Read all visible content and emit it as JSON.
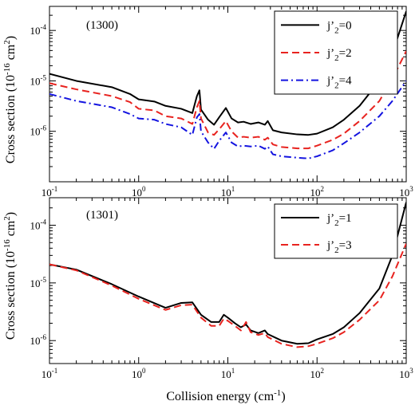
{
  "figure": {
    "xlabel_main": "Collision energy (cm",
    "xlabel_sup": "-1",
    "xlabel_end": ")",
    "ylabel_main": "Cross section (10",
    "ylabel_sup": "-16",
    "ylabel_mid": " cm",
    "ylabel_sup2": "2",
    "ylabel_end": ")"
  },
  "chart_data": [
    {
      "type": "line",
      "annotation": "(1300)",
      "xscale": "log",
      "yscale": "log",
      "xlim": [
        0.1,
        1000
      ],
      "ylim": [
        1e-07,
        0.0003
      ],
      "x_ticks": [
        {
          "base": "10",
          "exp": "-1"
        },
        {
          "base": "10",
          "exp": "0"
        },
        {
          "base": "10",
          "exp": "1"
        },
        {
          "base": "10",
          "exp": "2"
        },
        {
          "base": "10",
          "exp": "3"
        }
      ],
      "y_ticks": [
        {
          "value": 1e-06,
          "base": "10",
          "exp": "-6"
        },
        {
          "value": 1e-05,
          "base": "10",
          "exp": "-5"
        },
        {
          "value": 0.0001,
          "base": "10",
          "exp": "-4"
        }
      ],
      "legend_position": "top-right",
      "series": [
        {
          "name": "j'2=0",
          "legend_main": "j’",
          "legend_sub": "2",
          "legend_end": "=0",
          "color": "#000000",
          "dash": "",
          "points": [
            [
              0.1,
              1.38e-05
            ],
            [
              0.2,
              1e-05
            ],
            [
              0.5,
              7.5e-06
            ],
            [
              0.8,
              5.5e-06
            ],
            [
              1.0,
              4.3e-06
            ],
            [
              1.5,
              3.9e-06
            ],
            [
              2.0,
              3.2e-06
            ],
            [
              3.0,
              2.8e-06
            ],
            [
              4.0,
              2.3e-06
            ],
            [
              4.5,
              5e-06
            ],
            [
              4.8,
              6.5e-06
            ],
            [
              5.0,
              2.7e-06
            ],
            [
              6.0,
              1.7e-06
            ],
            [
              7.0,
              1.35e-06
            ],
            [
              8.0,
              1.9e-06
            ],
            [
              9.5,
              2.9e-06
            ],
            [
              11.0,
              1.8e-06
            ],
            [
              13.0,
              1.5e-06
            ],
            [
              15.0,
              1.55e-06
            ],
            [
              18.0,
              1.4e-06
            ],
            [
              22.0,
              1.5e-06
            ],
            [
              26.0,
              1.35e-06
            ],
            [
              28.0,
              1.6e-06
            ],
            [
              32.0,
              1.05e-06
            ],
            [
              40.0,
              9.5e-07
            ],
            [
              60.0,
              8.7e-07
            ],
            [
              80.0,
              8.5e-07
            ],
            [
              100.0,
              9e-07
            ],
            [
              150.0,
              1.2e-06
            ],
            [
              200.0,
              1.7e-06
            ],
            [
              300.0,
              3.2e-06
            ],
            [
              500.0,
              1e-05
            ],
            [
              700.0,
              3.5e-05
            ],
            [
              1000.0,
              0.00024
            ]
          ]
        },
        {
          "name": "j'2=2",
          "legend_main": "j’",
          "legend_sub": "2",
          "legend_end": "=2",
          "color": "#e8231f",
          "dash": "9,5",
          "points": [
            [
              0.1,
              9e-06
            ],
            [
              0.2,
              6.8e-06
            ],
            [
              0.5,
              5e-06
            ],
            [
              0.8,
              3.8e-06
            ],
            [
              1.0,
              2.8e-06
            ],
            [
              1.5,
              2.6e-06
            ],
            [
              2.0,
              2e-06
            ],
            [
              3.0,
              1.8e-06
            ],
            [
              4.0,
              1.4e-06
            ],
            [
              4.5,
              3e-06
            ],
            [
              4.8,
              4e-06
            ],
            [
              5.0,
              1.8e-06
            ],
            [
              6.0,
              9.5e-07
            ],
            [
              7.0,
              8.5e-07
            ],
            [
              8.0,
              1.1e-06
            ],
            [
              9.5,
              1.6e-06
            ],
            [
              11.0,
              1e-06
            ],
            [
              13.0,
              7.5e-07
            ],
            [
              15.0,
              7.8e-07
            ],
            [
              18.0,
              7.5e-07
            ],
            [
              22.0,
              7.8e-07
            ],
            [
              26.0,
              6.8e-07
            ],
            [
              28.0,
              7.5e-07
            ],
            [
              32.0,
              5.5e-07
            ],
            [
              40.0,
              4.9e-07
            ],
            [
              60.0,
              4.6e-07
            ],
            [
              80.0,
              4.6e-07
            ],
            [
              100.0,
              5.2e-07
            ],
            [
              150.0,
              6.8e-07
            ],
            [
              200.0,
              9e-07
            ],
            [
              300.0,
              1.6e-06
            ],
            [
              500.0,
              4e-06
            ],
            [
              700.0,
              1.1e-05
            ],
            [
              1000.0,
              3.9e-05
            ]
          ]
        },
        {
          "name": "j'2=4",
          "legend_main": "j’",
          "legend_sub": "2",
          "legend_end": "=4",
          "color": "#1414e0",
          "dash": "9,4,2,4",
          "points": [
            [
              0.1,
              5.5e-06
            ],
            [
              0.2,
              4e-06
            ],
            [
              0.5,
              3e-06
            ],
            [
              0.8,
              2.2e-06
            ],
            [
              1.0,
              1.8e-06
            ],
            [
              1.5,
              1.7e-06
            ],
            [
              2.0,
              1.4e-06
            ],
            [
              3.0,
              1.2e-06
            ],
            [
              4.0,
              8.5e-07
            ],
            [
              4.5,
              1.9e-06
            ],
            [
              4.8,
              2.2e-06
            ],
            [
              5.0,
              1e-06
            ],
            [
              6.0,
              6e-07
            ],
            [
              7.0,
              4.5e-07
            ],
            [
              8.0,
              6.5e-07
            ],
            [
              9.5,
              9.5e-07
            ],
            [
              11.0,
              6e-07
            ],
            [
              13.0,
              5e-07
            ],
            [
              15.0,
              5.2e-07
            ],
            [
              18.0,
              5e-07
            ],
            [
              22.0,
              5.2e-07
            ],
            [
              26.0,
              4.5e-07
            ],
            [
              28.0,
              5e-07
            ],
            [
              32.0,
              3.5e-07
            ],
            [
              40.0,
              3.2e-07
            ],
            [
              60.0,
              3e-07
            ],
            [
              80.0,
              2.9e-07
            ],
            [
              100.0,
              3.2e-07
            ],
            [
              150.0,
              4.2e-07
            ],
            [
              200.0,
              5.8e-07
            ],
            [
              300.0,
              9.5e-07
            ],
            [
              500.0,
              2e-06
            ],
            [
              700.0,
              4e-06
            ],
            [
              1000.0,
              1e-05
            ]
          ]
        }
      ]
    },
    {
      "type": "line",
      "annotation": "(1301)",
      "xscale": "log",
      "yscale": "log",
      "xlim": [
        0.1,
        1000
      ],
      "ylim": [
        4e-07,
        0.0003
      ],
      "x_ticks": [
        {
          "base": "10",
          "exp": "-1"
        },
        {
          "base": "10",
          "exp": "0"
        },
        {
          "base": "10",
          "exp": "1"
        },
        {
          "base": "10",
          "exp": "2"
        },
        {
          "base": "10",
          "exp": "3"
        }
      ],
      "y_ticks": [
        {
          "value": 1e-06,
          "base": "10",
          "exp": "-6"
        },
        {
          "value": 1e-05,
          "base": "10",
          "exp": "-5"
        },
        {
          "value": 0.0001,
          "base": "10",
          "exp": "-4"
        }
      ],
      "legend_position": "top-right",
      "series": [
        {
          "name": "j'2=1",
          "legend_main": "j’",
          "legend_sub": "2",
          "legend_end": "=1",
          "color": "#000000",
          "dash": "",
          "points": [
            [
              0.1,
              2.1e-05
            ],
            [
              0.2,
              1.7e-05
            ],
            [
              0.5,
              9.5e-06
            ],
            [
              1.0,
              5.8e-06
            ],
            [
              2.0,
              3.7e-06
            ],
            [
              3.0,
              4.5e-06
            ],
            [
              4.0,
              4.6e-06
            ],
            [
              5.0,
              2.8e-06
            ],
            [
              6.5,
              2.1e-06
            ],
            [
              8.0,
              2.1e-06
            ],
            [
              9.0,
              2.8e-06
            ],
            [
              10.0,
              2.5e-06
            ],
            [
              12.0,
              2e-06
            ],
            [
              14.0,
              1.7e-06
            ],
            [
              16.0,
              1.9e-06
            ],
            [
              18.0,
              1.5e-06
            ],
            [
              22.0,
              1.35e-06
            ],
            [
              26.0,
              1.5e-06
            ],
            [
              28.0,
              1.3e-06
            ],
            [
              40.0,
              1e-06
            ],
            [
              60.0,
              8.8e-07
            ],
            [
              80.0,
              9e-07
            ],
            [
              100.0,
              1.05e-06
            ],
            [
              150.0,
              1.3e-06
            ],
            [
              200.0,
              1.7e-06
            ],
            [
              300.0,
              3e-06
            ],
            [
              500.0,
              8e-06
            ],
            [
              700.0,
              3e-05
            ],
            [
              1000.0,
              0.00025
            ]
          ]
        },
        {
          "name": "j'2=3",
          "legend_main": "j’",
          "legend_sub": "2",
          "legend_end": "=3",
          "color": "#e8231f",
          "dash": "9,5",
          "points": [
            [
              0.1,
              2.1e-05
            ],
            [
              0.2,
              1.65e-05
            ],
            [
              0.5,
              9e-06
            ],
            [
              1.0,
              5.3e-06
            ],
            [
              2.0,
              3.4e-06
            ],
            [
              3.0,
              4.1e-06
            ],
            [
              4.0,
              4.2e-06
            ],
            [
              5.0,
              2.5e-06
            ],
            [
              6.5,
              1.8e-06
            ],
            [
              8.0,
              1.8e-06
            ],
            [
              9.0,
              2.4e-06
            ],
            [
              10.0,
              2.2e-06
            ],
            [
              12.0,
              1.8e-06
            ],
            [
              14.0,
              1.5e-06
            ],
            [
              16.0,
              2.1e-06
            ],
            [
              18.0,
              1.4e-06
            ],
            [
              22.0,
              1.25e-06
            ],
            [
              26.0,
              1.35e-06
            ],
            [
              28.0,
              1.15e-06
            ],
            [
              40.0,
              8.8e-07
            ],
            [
              60.0,
              7.7e-07
            ],
            [
              80.0,
              8e-07
            ],
            [
              100.0,
              8.8e-07
            ],
            [
              150.0,
              1.1e-06
            ],
            [
              200.0,
              1.4e-06
            ],
            [
              300.0,
              2.3e-06
            ],
            [
              500.0,
              5e-06
            ],
            [
              700.0,
              1.3e-05
            ],
            [
              1000.0,
              4.8e-05
            ]
          ]
        }
      ]
    }
  ]
}
